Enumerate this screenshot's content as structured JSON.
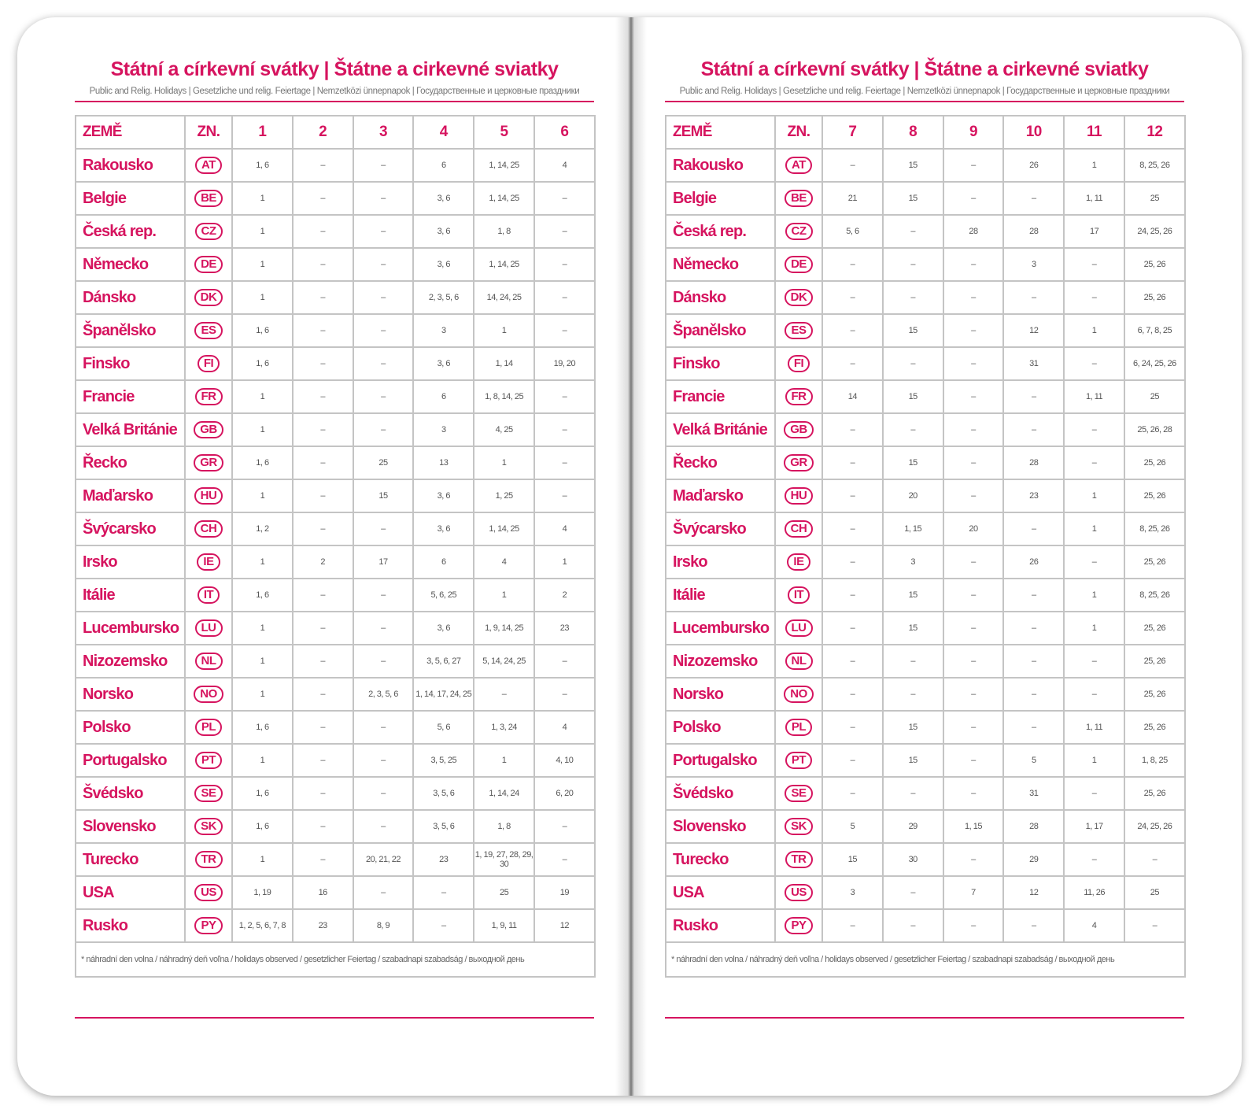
{
  "pages": [
    {
      "title": "Státní a církevní svátky | Štátne a cirkevné sviatky",
      "subtitle": "Public and Relig. Holidays | Gesetzliche und relig. Feiertage | Nemzetközi ünnepnapok | Государственные и церковные праздники",
      "header": [
        "ZEMĚ",
        "ZN.",
        "1",
        "2",
        "3",
        "4",
        "5",
        "6"
      ],
      "rows": [
        [
          "Rakousko",
          "AT",
          "1, 6",
          "–",
          "–",
          "6",
          "1, 14, 25",
          "4"
        ],
        [
          "Belgie",
          "BE",
          "1",
          "–",
          "–",
          "3, 6",
          "1, 14, 25",
          "–"
        ],
        [
          "Česká rep.",
          "CZ",
          "1",
          "–",
          "–",
          "3, 6",
          "1, 8",
          "–"
        ],
        [
          "Německo",
          "DE",
          "1",
          "–",
          "–",
          "3, 6",
          "1, 14, 25",
          "–"
        ],
        [
          "Dánsko",
          "DK",
          "1",
          "–",
          "–",
          "2, 3, 5, 6",
          "14, 24, 25",
          "–"
        ],
        [
          "Španělsko",
          "ES",
          "1, 6",
          "–",
          "–",
          "3",
          "1",
          "–"
        ],
        [
          "Finsko",
          "FI",
          "1, 6",
          "–",
          "–",
          "3, 6",
          "1, 14",
          "19, 20"
        ],
        [
          "Francie",
          "FR",
          "1",
          "–",
          "–",
          "6",
          "1, 8, 14, 25",
          "–"
        ],
        [
          "Velká Británie",
          "GB",
          "1",
          "–",
          "–",
          "3",
          "4, 25",
          "–"
        ],
        [
          "Řecko",
          "GR",
          "1, 6",
          "–",
          "25",
          "13",
          "1",
          "–"
        ],
        [
          "Maďarsko",
          "HU",
          "1",
          "–",
          "15",
          "3, 6",
          "1, 25",
          "–"
        ],
        [
          "Švýcarsko",
          "CH",
          "1, 2",
          "–",
          "–",
          "3, 6",
          "1, 14, 25",
          "4"
        ],
        [
          "Irsko",
          "IE",
          "1",
          "2",
          "17",
          "6",
          "4",
          "1"
        ],
        [
          "Itálie",
          "IT",
          "1, 6",
          "–",
          "–",
          "5, 6, 25",
          "1",
          "2"
        ],
        [
          "Lucembursko",
          "LU",
          "1",
          "–",
          "–",
          "3, 6",
          "1, 9, 14, 25",
          "23"
        ],
        [
          "Nizozemsko",
          "NL",
          "1",
          "–",
          "–",
          "3, 5, 6, 27",
          "5, 14, 24, 25",
          "–"
        ],
        [
          "Norsko",
          "NO",
          "1",
          "–",
          "2, 3, 5, 6",
          "1, 14, 17, 24, 25",
          "–",
          "–"
        ],
        [
          "Polsko",
          "PL",
          "1, 6",
          "–",
          "–",
          "5, 6",
          "1, 3, 24",
          "4"
        ],
        [
          "Portugalsko",
          "PT",
          "1",
          "–",
          "–",
          "3, 5, 25",
          "1",
          "4, 10"
        ],
        [
          "Švédsko",
          "SE",
          "1, 6",
          "–",
          "–",
          "3, 5, 6",
          "1, 14, 24",
          "6, 20"
        ],
        [
          "Slovensko",
          "SK",
          "1, 6",
          "–",
          "–",
          "3, 5, 6",
          "1, 8",
          "–"
        ],
        [
          "Turecko",
          "TR",
          "1",
          "–",
          "20, 21, 22",
          "23",
          "1, 19, 27, 28, 29, 30",
          "–"
        ],
        [
          "USA",
          "US",
          "1, 19",
          "16",
          "–",
          "–",
          "25",
          "19"
        ],
        [
          "Rusko",
          "PY",
          "1, 2, 5, 6, 7, 8",
          "23",
          "8, 9",
          "–",
          "1, 9, 11",
          "12"
        ]
      ],
      "footnote": "* náhradní den volna / náhradný deň voľna / holidays observed / gesetzlicher Feiertag / szabadnapi szabadság / выходной день"
    },
    {
      "title": "Státní a církevní svátky | Štátne a cirkevné sviatky",
      "subtitle": "Public and Relig. Holidays | Gesetzliche und relig. Feiertage | Nemzetközi ünnepnapok | Государственные и церковные праздники",
      "header": [
        "ZEMĚ",
        "ZN.",
        "7",
        "8",
        "9",
        "10",
        "11",
        "12"
      ],
      "rows": [
        [
          "Rakousko",
          "AT",
          "–",
          "15",
          "–",
          "26",
          "1",
          "8, 25, 26"
        ],
        [
          "Belgie",
          "BE",
          "21",
          "15",
          "–",
          "–",
          "1, 11",
          "25"
        ],
        [
          "Česká rep.",
          "CZ",
          "5, 6",
          "–",
          "28",
          "28",
          "17",
          "24, 25, 26"
        ],
        [
          "Německo",
          "DE",
          "–",
          "–",
          "–",
          "3",
          "–",
          "25, 26"
        ],
        [
          "Dánsko",
          "DK",
          "–",
          "–",
          "–",
          "–",
          "–",
          "25, 26"
        ],
        [
          "Španělsko",
          "ES",
          "–",
          "15",
          "–",
          "12",
          "1",
          "6, 7, 8, 25"
        ],
        [
          "Finsko",
          "FI",
          "–",
          "–",
          "–",
          "31",
          "–",
          "6, 24, 25, 26"
        ],
        [
          "Francie",
          "FR",
          "14",
          "15",
          "–",
          "–",
          "1, 11",
          "25"
        ],
        [
          "Velká Británie",
          "GB",
          "–",
          "–",
          "–",
          "–",
          "–",
          "25, 26, 28"
        ],
        [
          "Řecko",
          "GR",
          "–",
          "15",
          "–",
          "28",
          "–",
          "25, 26"
        ],
        [
          "Maďarsko",
          "HU",
          "–",
          "20",
          "–",
          "23",
          "1",
          "25, 26"
        ],
        [
          "Švýcarsko",
          "CH",
          "–",
          "1, 15",
          "20",
          "–",
          "1",
          "8, 25, 26"
        ],
        [
          "Irsko",
          "IE",
          "–",
          "3",
          "–",
          "26",
          "–",
          "25, 26"
        ],
        [
          "Itálie",
          "IT",
          "–",
          "15",
          "–",
          "–",
          "1",
          "8, 25, 26"
        ],
        [
          "Lucembursko",
          "LU",
          "–",
          "15",
          "–",
          "–",
          "1",
          "25, 26"
        ],
        [
          "Nizozemsko",
          "NL",
          "–",
          "–",
          "–",
          "–",
          "–",
          "25, 26"
        ],
        [
          "Norsko",
          "NO",
          "–",
          "–",
          "–",
          "–",
          "–",
          "25, 26"
        ],
        [
          "Polsko",
          "PL",
          "–",
          "15",
          "–",
          "–",
          "1, 11",
          "25, 26"
        ],
        [
          "Portugalsko",
          "PT",
          "–",
          "15",
          "–",
          "5",
          "1",
          "1, 8, 25"
        ],
        [
          "Švédsko",
          "SE",
          "–",
          "–",
          "–",
          "31",
          "–",
          "25, 26"
        ],
        [
          "Slovensko",
          "SK",
          "5",
          "29",
          "1, 15",
          "28",
          "1, 17",
          "24, 25, 26"
        ],
        [
          "Turecko",
          "TR",
          "15",
          "30",
          "–",
          "29",
          "–",
          "–"
        ],
        [
          "USA",
          "US",
          "3",
          "–",
          "7",
          "12",
          "11, 26",
          "25"
        ],
        [
          "Rusko",
          "PY",
          "–",
          "–",
          "–",
          "–",
          "4",
          "–"
        ]
      ],
      "footnote": "* náhradní den volna / náhradný deň voľna / holidays observed / gesetzlicher Feiertag / szabadnapi szabadság / выходной день"
    }
  ]
}
